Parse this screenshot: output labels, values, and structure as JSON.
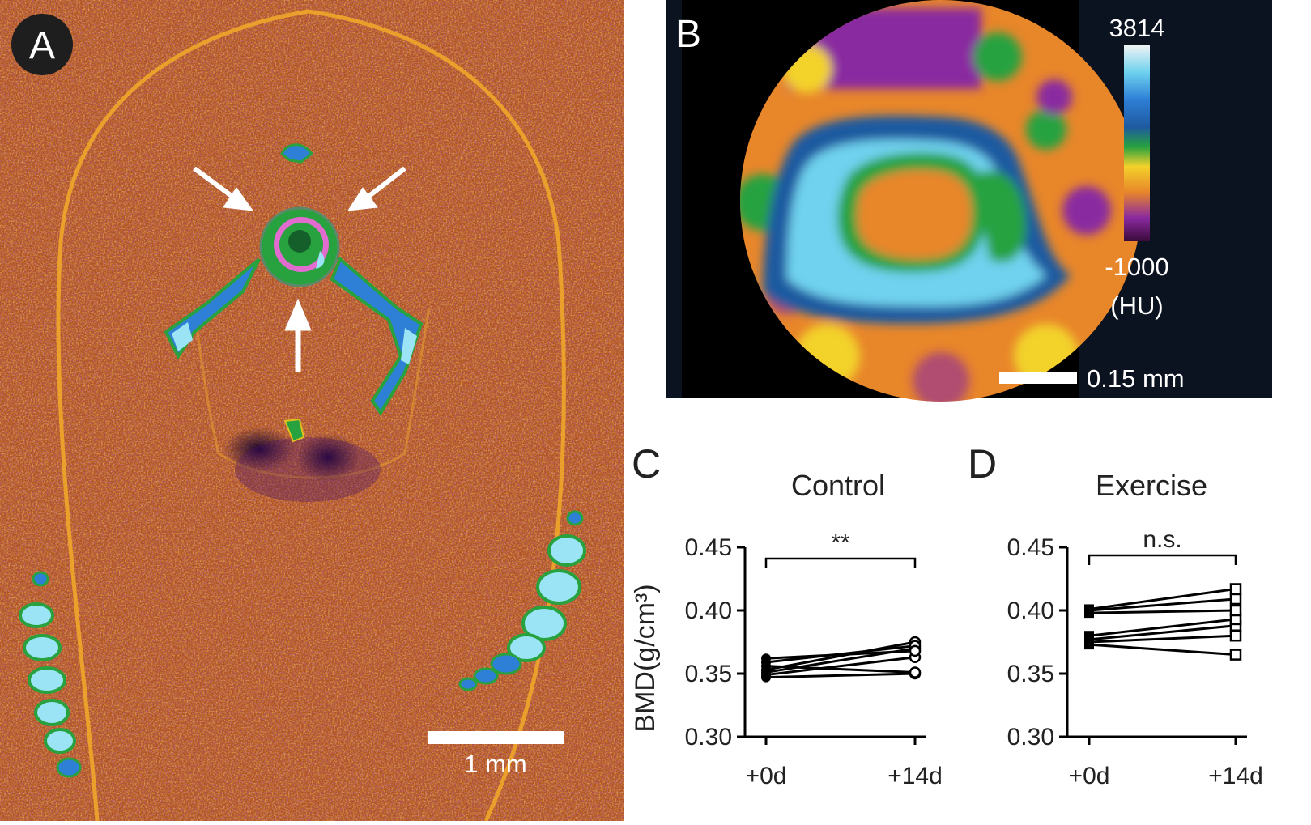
{
  "panel_a": {
    "letter": "A",
    "scalebar_label": "1 mm"
  },
  "panel_b": {
    "letter": "B",
    "colorbar_max": "3814",
    "colorbar_min": "-1000",
    "colorbar_unit": "(HU)",
    "scalebar_label": "0.15 mm"
  },
  "colors": {
    "background_purple": "#7a2a9e",
    "background_orange": "#e8862a",
    "bone_blue": "#2e7fd6",
    "bone_cyan": "#9ae4f5",
    "bone_green": "#27a23f",
    "line": "#000000"
  },
  "chart_data": [
    {
      "panel_letter": "C",
      "type": "line",
      "title": "Control",
      "ylabel": "BMD(g/cm³)",
      "categories": [
        "+0d",
        "+14d"
      ],
      "ylim": [
        0.3,
        0.45
      ],
      "yticks": [
        "0.30",
        "0.35",
        "0.40",
        "0.45"
      ],
      "annotation": "**",
      "marker_0d": "filled-circle",
      "marker_14d": "open-circle",
      "series": [
        {
          "values": [
            0.347,
            0.35
          ]
        },
        {
          "values": [
            0.349,
            0.363
          ]
        },
        {
          "values": [
            0.351,
            0.37
          ]
        },
        {
          "values": [
            0.353,
            0.375
          ]
        },
        {
          "values": [
            0.356,
            0.351
          ]
        },
        {
          "values": [
            0.359,
            0.372
          ]
        },
        {
          "values": [
            0.362,
            0.368
          ]
        }
      ]
    },
    {
      "panel_letter": "D",
      "type": "line",
      "title": "Exercise",
      "ylabel": "",
      "categories": [
        "+0d",
        "+14d"
      ],
      "ylim": [
        0.3,
        0.45
      ],
      "yticks": [
        "0.30",
        "0.35",
        "0.40",
        "0.45"
      ],
      "annotation": "n.s.",
      "marker_0d": "filled-square",
      "marker_14d": "open-square",
      "series": [
        {
          "values": [
            0.373,
            0.365
          ]
        },
        {
          "values": [
            0.375,
            0.38
          ]
        },
        {
          "values": [
            0.377,
            0.388
          ]
        },
        {
          "values": [
            0.38,
            0.393
          ]
        },
        {
          "values": [
            0.398,
            0.4
          ]
        },
        {
          "values": [
            0.4,
            0.409
          ]
        },
        {
          "values": [
            0.401,
            0.417
          ]
        }
      ]
    }
  ]
}
